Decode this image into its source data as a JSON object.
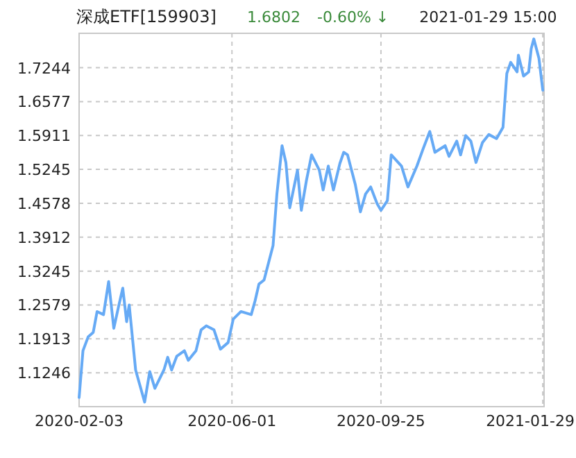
{
  "chart_data": {
    "type": "line",
    "title": "深成ETF[159903]",
    "annotations": [
      "1.6802",
      "-0.60% ↓",
      "2021-01-29 15:00"
    ],
    "x": [
      "2020-02-03",
      "2020-02-06",
      "2020-02-10",
      "2020-02-14",
      "2020-02-17",
      "2020-02-22",
      "2020-02-26",
      "2020-03-01",
      "2020-03-05",
      "2020-03-08",
      "2020-03-11",
      "2020-03-13",
      "2020-03-18",
      "2020-03-21",
      "2020-03-25",
      "2020-03-29",
      "2020-04-02",
      "2020-04-09",
      "2020-04-12",
      "2020-04-15",
      "2020-04-19",
      "2020-04-25",
      "2020-04-28",
      "2020-05-04",
      "2020-05-08",
      "2020-05-12",
      "2020-05-18",
      "2020-05-23",
      "2020-05-29",
      "2020-06-02",
      "2020-06-08",
      "2020-06-16",
      "2020-06-19",
      "2020-06-22",
      "2020-06-26",
      "2020-07-03",
      "2020-07-06",
      "2020-07-10",
      "2020-07-13",
      "2020-07-16",
      "2020-07-22",
      "2020-07-25",
      "2020-07-29",
      "2020-08-02",
      "2020-08-08",
      "2020-08-11",
      "2020-08-15",
      "2020-08-19",
      "2020-08-24",
      "2020-08-27",
      "2020-08-30",
      "2020-09-05",
      "2020-09-09",
      "2020-09-13",
      "2020-09-17",
      "2020-09-22",
      "2020-09-25",
      "2020-09-30",
      "2020-10-03",
      "2020-10-11",
      "2020-10-16",
      "2020-10-23",
      "2020-10-28",
      "2020-11-02",
      "2020-11-06",
      "2020-11-14",
      "2020-11-17",
      "2020-11-23",
      "2020-11-26",
      "2020-11-30",
      "2020-12-04",
      "2020-12-08",
      "2020-12-13",
      "2020-12-18",
      "2020-12-24",
      "2020-12-29",
      "2021-01-01",
      "2021-01-04",
      "2021-01-09",
      "2021-01-10",
      "2021-01-14",
      "2021-01-18",
      "2021-01-20",
      "2021-01-22",
      "2021-01-26",
      "2021-01-29"
    ],
    "series": [
      {
        "color": "#66aaf5",
        "values": [
          1.076,
          1.168,
          1.195,
          1.204,
          1.245,
          1.239,
          1.304,
          1.212,
          1.258,
          1.291,
          1.225,
          1.258,
          1.13,
          1.103,
          1.067,
          1.127,
          1.094,
          1.13,
          1.155,
          1.13,
          1.157,
          1.168,
          1.149,
          1.168,
          1.209,
          1.217,
          1.209,
          1.171,
          1.184,
          1.23,
          1.245,
          1.239,
          1.266,
          1.299,
          1.307,
          1.375,
          1.476,
          1.571,
          1.538,
          1.449,
          1.523,
          1.444,
          1.503,
          1.553,
          1.523,
          1.484,
          1.531,
          1.484,
          1.536,
          1.558,
          1.553,
          1.495,
          1.441,
          1.476,
          1.49,
          1.457,
          1.444,
          1.463,
          1.553,
          1.531,
          1.49,
          1.531,
          1.566,
          1.599,
          1.558,
          1.571,
          1.55,
          1.58,
          1.553,
          1.591,
          1.58,
          1.538,
          1.577,
          1.593,
          1.585,
          1.607,
          1.713,
          1.735,
          1.716,
          1.749,
          1.708,
          1.716,
          1.762,
          1.781,
          1.743,
          1.68
        ]
      }
    ],
    "xlim": [
      "2020-02-03",
      "2021-01-30"
    ],
    "xticks": [
      {
        "value": "2020-02-03",
        "label": "2020-02-03"
      },
      {
        "value": "2020-06-01",
        "label": "2020-06-01"
      },
      {
        "value": "2020-09-25",
        "label": "2020-09-25"
      },
      {
        "value": "2021-01-29",
        "label": "2021-01-29"
      }
    ],
    "ylim": [
      1.058,
      1.792
    ],
    "yticks": [
      1.1246,
      1.1913,
      1.2579,
      1.3245,
      1.3912,
      1.4578,
      1.5245,
      1.5911,
      1.6577,
      1.7244
    ],
    "grid": true,
    "marker": "none",
    "line_style": "solid"
  }
}
